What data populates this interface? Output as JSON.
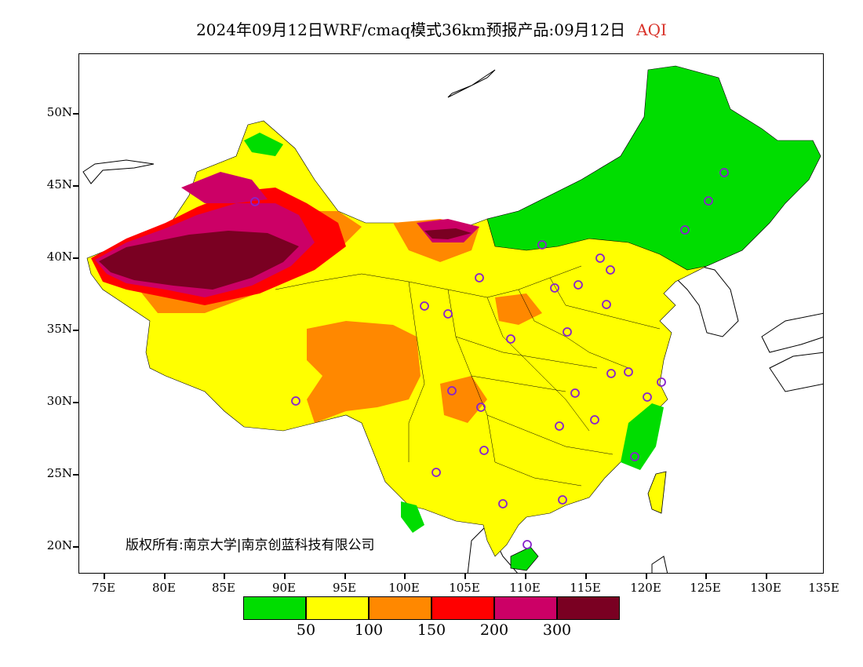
{
  "title": {
    "main": "2024年09月12日WRF/cmaq模式36km预报产品:09月12日",
    "variable": "AQI"
  },
  "latitude_labels": [
    "50N",
    "45N",
    "40N",
    "35N",
    "30N",
    "25N",
    "20N"
  ],
  "longitude_labels": [
    "75E",
    "80E",
    "85E",
    "90E",
    "95E",
    "100E",
    "105E",
    "110E",
    "115E",
    "120E",
    "125E",
    "130E",
    "135E"
  ],
  "copyright": "版权所有:南京大学|南京创蓝科技有限公司",
  "legend": {
    "colors": [
      "#00dd00",
      "#ffff00",
      "#ff8800",
      "#ff0000",
      "#cc0066",
      "#7a0022"
    ],
    "labels": [
      "50",
      "100",
      "150",
      "200",
      "300"
    ]
  },
  "colors": {
    "good": "#00dd00",
    "moderate": "#ffff00",
    "unhealthy_sensitive": "#ff8800",
    "unhealthy": "#ff0000",
    "very_unhealthy": "#cc0066",
    "hazardous": "#7a0022",
    "station_marker": "#8822cc"
  }
}
